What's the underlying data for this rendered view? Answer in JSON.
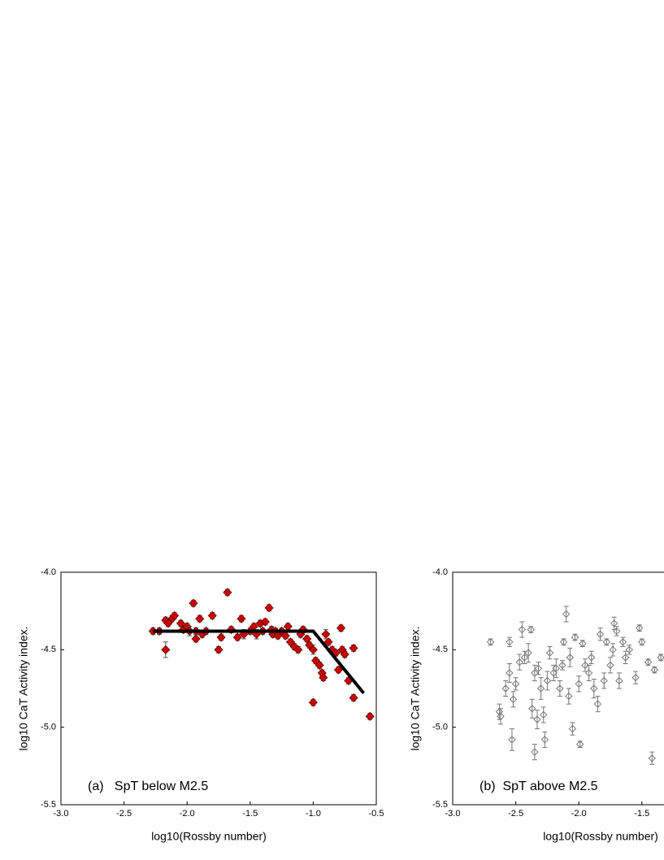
{
  "chart_data": [
    {
      "type": "scatter",
      "x_label": "log10(Rossby number)",
      "y_label": "log10 CaT Activity index.",
      "annotation": "(a)   SpT below M2.5",
      "xlim": [
        -3.0,
        -0.5
      ],
      "ylim": [
        -5.5,
        -4.0
      ],
      "xticks": [
        {
          "value": -3.0,
          "label": "-3.0"
        },
        {
          "value": -2.5,
          "label": "-2.5"
        },
        {
          "value": -2.0,
          "label": "-2.0"
        },
        {
          "value": -1.5,
          "label": "-1.5"
        },
        {
          "value": -1.0,
          "label": "-1.0"
        },
        {
          "value": -0.5,
          "label": "-0.5"
        }
      ],
      "yticks": [
        {
          "value": -5.5,
          "label": "-5.5"
        },
        {
          "value": -5.0,
          "label": "-5.0"
        },
        {
          "value": -4.5,
          "label": "-4.5"
        },
        {
          "value": -4.0,
          "label": "-4.0"
        }
      ],
      "series": [
        {
          "marker": "filled-diamond",
          "color": "#cc0000",
          "x": [
            -2.27,
            -2.22,
            -2.17,
            -2.15,
            -2.17,
            -2.12,
            -2.1,
            -2.05,
            -2.03,
            -2.0,
            -1.98,
            -1.95,
            -1.93,
            -1.93,
            -1.9,
            -1.88,
            -1.85,
            -1.8,
            -1.75,
            -1.73,
            -1.68,
            -1.65,
            -1.6,
            -1.57,
            -1.55,
            -1.5,
            -1.47,
            -1.45,
            -1.42,
            -1.4,
            -1.38,
            -1.35,
            -1.33,
            -1.32,
            -1.3,
            -1.28,
            -1.25,
            -1.22,
            -1.2,
            -1.18,
            -1.15,
            -1.12,
            -1.1,
            -1.08,
            -1.05,
            -1.03,
            -1.0,
            -1.0,
            -0.98,
            -0.95,
            -0.93,
            -0.92,
            -0.9,
            -0.88,
            -0.85,
            -0.82,
            -0.8,
            -0.78,
            -0.77,
            -0.75,
            -0.72,
            -0.68,
            -0.68,
            -0.55
          ],
          "values": [
            -4.38,
            -4.38,
            -4.31,
            -4.33,
            -4.5,
            -4.3,
            -4.28,
            -4.33,
            -4.37,
            -4.35,
            -4.38,
            -4.2,
            -4.38,
            -4.43,
            -4.3,
            -4.4,
            -4.38,
            -4.28,
            -4.5,
            -4.42,
            -4.13,
            -4.37,
            -4.42,
            -4.3,
            -4.4,
            -4.38,
            -4.35,
            -4.4,
            -4.33,
            -4.38,
            -4.32,
            -4.23,
            -4.37,
            -4.4,
            -4.38,
            -4.41,
            -4.38,
            -4.41,
            -4.35,
            -4.45,
            -4.48,
            -4.5,
            -4.4,
            -4.37,
            -4.43,
            -4.47,
            -4.5,
            -4.84,
            -4.57,
            -4.6,
            -4.65,
            -4.68,
            -4.4,
            -4.45,
            -4.5,
            -4.52,
            -4.63,
            -4.36,
            -4.5,
            -4.53,
            -4.7,
            -4.49,
            -4.81,
            -4.93
          ],
          "errors": [
            0.02,
            0.02,
            0.02,
            0.02,
            0.05,
            0.02,
            0.02,
            0.02,
            0.02,
            0.02,
            0.03,
            0.02,
            0.02,
            0.02,
            0.02,
            0.02,
            0.02,
            0.02,
            0.02,
            0.02,
            0.02,
            0.02,
            0.02,
            0.02,
            0.03,
            0.02,
            0.02,
            0.03,
            0.02,
            0.02,
            0.02,
            0.02,
            0.02,
            0.02,
            0.02,
            0.02,
            0.02,
            0.02,
            0.02,
            0.02,
            0.02,
            0.02,
            0.02,
            0.02,
            0.02,
            0.02,
            0.03,
            0.02,
            0.02,
            0.02,
            0.02,
            0.02,
            0.03,
            0.02,
            0.02,
            0.02,
            0.02,
            0.02,
            0.02,
            0.02,
            0.02,
            0.02,
            0.02,
            0.02
          ]
        }
      ],
      "fit_line": {
        "color": "#000000",
        "x": [
          -2.27,
          -1.0,
          -0.6
        ],
        "values": [
          -4.38,
          -4.38,
          -4.78
        ]
      }
    },
    {
      "type": "scatter",
      "x_label": "log10(Rossby number)",
      "y_label": "log10 CaT Activity index.",
      "annotation": "(b)  SpT above M2.5",
      "xlim": [
        -3.0,
        -0.5
      ],
      "ylim": [
        -5.5,
        -4.0
      ],
      "xticks": [
        {
          "value": -3.0,
          "label": "-3.0"
        },
        {
          "value": -2.5,
          "label": "-2.5"
        },
        {
          "value": -2.0,
          "label": "-2.0"
        },
        {
          "value": -1.5,
          "label": "-1.5"
        }
      ],
      "yticks": [
        {
          "value": -5.5,
          "label": "-5.5"
        },
        {
          "value": -5.0,
          "label": "-5.0"
        },
        {
          "value": -4.5,
          "label": "-4.5"
        },
        {
          "value": -4.0,
          "label": "-4.0"
        }
      ],
      "series": [
        {
          "marker": "open-diamond",
          "color": "#777777",
          "x": [
            -2.7,
            -2.63,
            -2.62,
            -2.58,
            -2.55,
            -2.55,
            -2.53,
            -2.52,
            -2.5,
            -2.47,
            -2.45,
            -2.43,
            -2.4,
            -2.38,
            -2.37,
            -2.35,
            -2.35,
            -2.33,
            -2.32,
            -2.3,
            -2.28,
            -2.27,
            -2.25,
            -2.23,
            -2.2,
            -2.18,
            -2.15,
            -2.13,
            -2.12,
            -2.1,
            -2.08,
            -2.07,
            -2.05,
            -2.03,
            -2.0,
            -1.99,
            -1.97,
            -1.95,
            -1.92,
            -1.9,
            -1.88,
            -1.85,
            -1.83,
            -1.8,
            -1.78,
            -1.75,
            -1.73,
            -1.72,
            -1.7,
            -1.68,
            -1.65,
            -1.63,
            -1.6,
            -1.55,
            -1.52,
            -1.5,
            -1.45,
            -1.42,
            -1.4,
            -1.35
          ],
          "values": [
            -4.45,
            -4.9,
            -4.93,
            -4.75,
            -4.45,
            -4.65,
            -5.08,
            -4.82,
            -4.72,
            -4.58,
            -4.37,
            -4.55,
            -4.52,
            -4.37,
            -4.88,
            -5.16,
            -4.65,
            -4.95,
            -4.62,
            -4.75,
            -4.92,
            -5.08,
            -4.7,
            -4.52,
            -4.65,
            -4.62,
            -4.75,
            -4.6,
            -4.45,
            -4.27,
            -4.8,
            -4.55,
            -5.01,
            -4.42,
            -4.72,
            -5.11,
            -4.46,
            -4.6,
            -4.65,
            -4.55,
            -4.75,
            -4.85,
            -4.4,
            -4.7,
            -4.45,
            -4.6,
            -4.5,
            -4.33,
            -4.38,
            -4.7,
            -4.45,
            -4.55,
            -4.5,
            -4.68,
            -4.36,
            -4.45,
            -4.58,
            -5.2,
            -4.63,
            -4.55
          ],
          "errors": [
            0.02,
            0.05,
            0.05,
            0.05,
            0.03,
            0.06,
            0.07,
            0.05,
            0.04,
            0.05,
            0.05,
            0.04,
            0.06,
            0.02,
            0.06,
            0.05,
            0.05,
            0.06,
            0.04,
            0.07,
            0.05,
            0.05,
            0.06,
            0.04,
            0.05,
            0.06,
            0.05,
            0.03,
            0.02,
            0.05,
            0.05,
            0.06,
            0.04,
            0.02,
            0.05,
            0.02,
            0.02,
            0.04,
            0.05,
            0.04,
            0.06,
            0.05,
            0.04,
            0.05,
            0.02,
            0.05,
            0.04,
            0.04,
            0.03,
            0.05,
            0.03,
            0.04,
            0.03,
            0.04,
            0.02,
            0.02,
            0.02,
            0.04,
            0.02,
            0.02
          ]
        }
      ]
    }
  ]
}
